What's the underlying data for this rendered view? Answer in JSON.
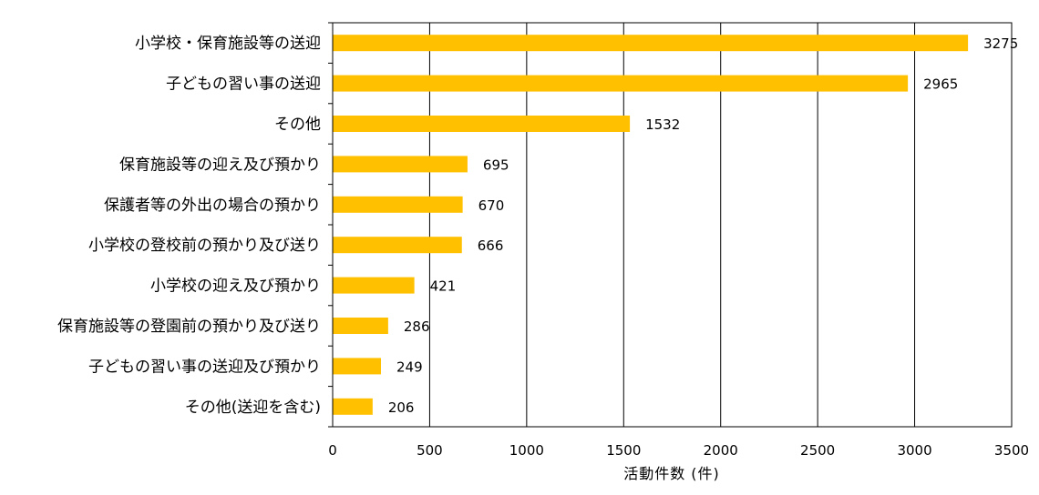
{
  "chart_data": {
    "type": "bar",
    "orientation": "horizontal",
    "categories": [
      "小学校・保育施設等の送迎",
      "子どもの習い事の送迎",
      "その他",
      "保育施設等の迎え及び預かり",
      "保護者等の外出の場合の預かり",
      "小学校の登校前の預かり及び送り",
      "小学校の迎え及び預かり",
      "保育施設等の登園前の預かり及び送り",
      "子どもの習い事の送迎及び預かり",
      "その他(送迎を含む)"
    ],
    "values": [
      3275,
      2965,
      1532,
      695,
      670,
      666,
      421,
      286,
      249,
      206
    ],
    "xlabel": "活動件数 (件)",
    "xlim": [
      0,
      3500
    ],
    "xticks": [
      0,
      500,
      1000,
      1500,
      2000,
      2500,
      3000,
      3500
    ],
    "grid": true,
    "bar_color": "#FFC000",
    "axis_color": "#000000"
  }
}
